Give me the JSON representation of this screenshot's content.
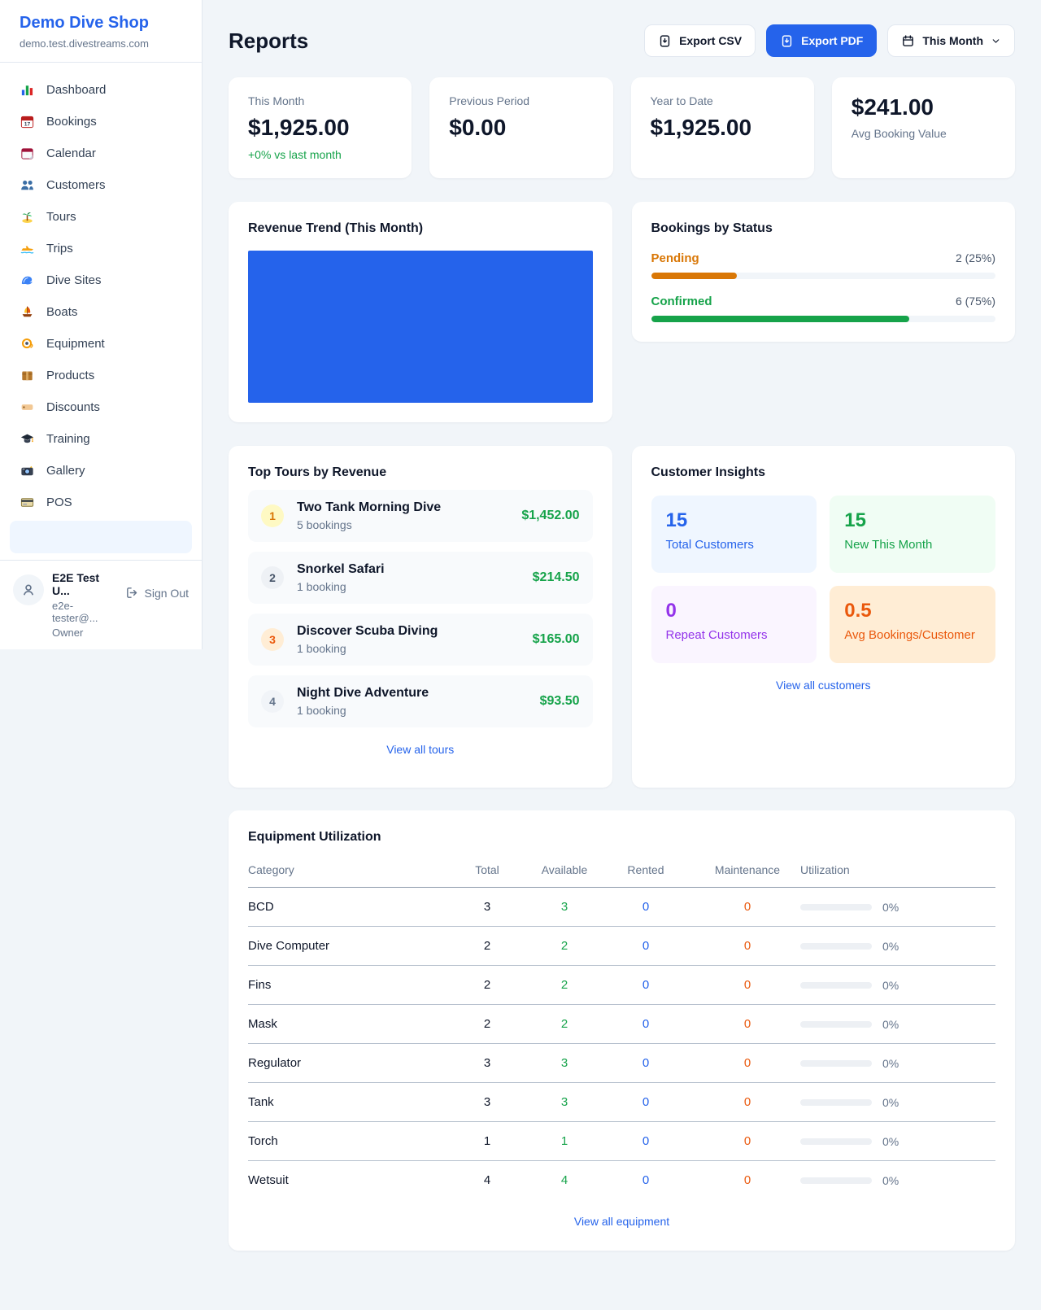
{
  "sidebar": {
    "brand": "Demo Dive Shop",
    "domain": "demo.test.divestreams.com",
    "items": [
      {
        "label": "Dashboard"
      },
      {
        "label": "Bookings"
      },
      {
        "label": "Calendar"
      },
      {
        "label": "Customers"
      },
      {
        "label": "Tours"
      },
      {
        "label": "Trips"
      },
      {
        "label": "Dive Sites"
      },
      {
        "label": "Boats"
      },
      {
        "label": "Equipment"
      },
      {
        "label": "Products"
      },
      {
        "label": "Discounts"
      },
      {
        "label": "Training"
      },
      {
        "label": "Gallery"
      },
      {
        "label": "POS"
      }
    ],
    "user": {
      "name": "E2E Test U...",
      "email": "e2e-tester@...",
      "role": "Owner",
      "sign_out": "Sign Out"
    }
  },
  "header": {
    "title": "Reports",
    "export_csv": "Export CSV",
    "export_pdf": "Export PDF",
    "period": "This Month",
    "accent_color": "#2563eb"
  },
  "stats": {
    "this_month": {
      "label": "This Month",
      "value": "$1,925.00",
      "delta": "+0% vs last month"
    },
    "previous_period": {
      "label": "Previous Period",
      "value": "$0.00"
    },
    "year_to_date": {
      "label": "Year to Date",
      "value": "$1,925.00"
    },
    "avg_booking": {
      "value": "$241.00",
      "label": "Avg Booking Value"
    }
  },
  "revenue_trend": {
    "title": "Revenue Trend (This Month)",
    "bar_color": "#2563eb"
  },
  "bookings_by_status": {
    "title": "Bookings by Status",
    "statuses": [
      {
        "label": "Pending",
        "value_text": "2 (25%)",
        "percent": 25,
        "color": "#d97706"
      },
      {
        "label": "Confirmed",
        "value_text": "6 (75%)",
        "percent": 75,
        "color": "#16a34a"
      }
    ]
  },
  "top_tours": {
    "title": "Top Tours by Revenue",
    "rows": [
      {
        "rank": "1",
        "name": "Two Tank Morning Dive",
        "bookings": "5 bookings",
        "amount": "$1,452.00"
      },
      {
        "rank": "2",
        "name": "Snorkel Safari",
        "bookings": "1 booking",
        "amount": "$214.50"
      },
      {
        "rank": "3",
        "name": "Discover Scuba Diving",
        "bookings": "1 booking",
        "amount": "$165.00"
      },
      {
        "rank": "4",
        "name": "Night Dive Adventure",
        "bookings": "1 booking",
        "amount": "$93.50"
      }
    ],
    "view_all": "View all tours"
  },
  "customer_insights": {
    "title": "Customer Insights",
    "tiles": [
      {
        "value": "15",
        "label": "Total Customers",
        "color": "#2563eb",
        "bg": "#eff6ff"
      },
      {
        "value": "15",
        "label": "New This Month",
        "color": "#16a34a",
        "bg": "#f0fdf4"
      },
      {
        "value": "0",
        "label": "Repeat Customers",
        "color": "#9333ea",
        "bg": "#faf5ff"
      },
      {
        "value": "0.5",
        "label": "Avg Bookings/Customer",
        "color": "#ea580c",
        "bg": "#ffedd5"
      }
    ],
    "view_all": "View all customers"
  },
  "equipment": {
    "title": "Equipment Utilization",
    "headers": [
      "Category",
      "Total",
      "Available",
      "Rented",
      "Maintenance",
      "Utilization"
    ],
    "rows": [
      {
        "category": "BCD",
        "total": "3",
        "available": "3",
        "rented": "0",
        "maintenance": "0",
        "utilization": "0%"
      },
      {
        "category": "Dive Computer",
        "total": "2",
        "available": "2",
        "rented": "0",
        "maintenance": "0",
        "utilization": "0%"
      },
      {
        "category": "Fins",
        "total": "2",
        "available": "2",
        "rented": "0",
        "maintenance": "0",
        "utilization": "0%"
      },
      {
        "category": "Mask",
        "total": "2",
        "available": "2",
        "rented": "0",
        "maintenance": "0",
        "utilization": "0%"
      },
      {
        "category": "Regulator",
        "total": "3",
        "available": "3",
        "rented": "0",
        "maintenance": "0",
        "utilization": "0%"
      },
      {
        "category": "Tank",
        "total": "3",
        "available": "3",
        "rented": "0",
        "maintenance": "0",
        "utilization": "0%"
      },
      {
        "category": "Torch",
        "total": "1",
        "available": "1",
        "rented": "0",
        "maintenance": "0",
        "utilization": "0%"
      },
      {
        "category": "Wetsuit",
        "total": "4",
        "available": "4",
        "rented": "0",
        "maintenance": "0",
        "utilization": "0%"
      }
    ],
    "view_all": "View all equipment"
  }
}
